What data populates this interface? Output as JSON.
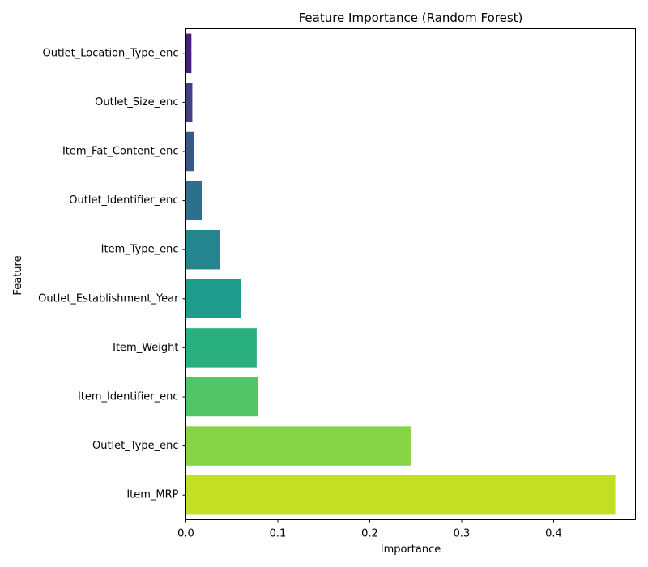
{
  "chart_data": {
    "type": "bar",
    "orientation": "horizontal",
    "title": "Feature Importance (Random Forest)",
    "xlabel": "Importance",
    "ylabel": "Feature",
    "categories": [
      "Outlet_Location_Type_enc",
      "Outlet_Size_enc",
      "Item_Fat_Content_enc",
      "Outlet_Identifier_enc",
      "Item_Type_enc",
      "Outlet_Establishment_Year",
      "Item_Weight",
      "Item_Identifier_enc",
      "Outlet_Type_enc",
      "Item_MRP"
    ],
    "values": [
      0.006,
      0.007,
      0.009,
      0.018,
      0.037,
      0.06,
      0.077,
      0.078,
      0.245,
      0.467
    ],
    "colors": [
      "#482173",
      "#433e85",
      "#38588c",
      "#2d708e",
      "#25858e",
      "#1e9b8a",
      "#2ab07f",
      "#52c569",
      "#86d549",
      "#c2df23"
    ],
    "xlim": [
      0,
      0.489
    ],
    "xticks": [
      0.0,
      0.1,
      0.2,
      0.3,
      0.4
    ],
    "xtick_labels": [
      "0.0",
      "0.1",
      "0.2",
      "0.3",
      "0.4"
    ],
    "grid": false
  }
}
